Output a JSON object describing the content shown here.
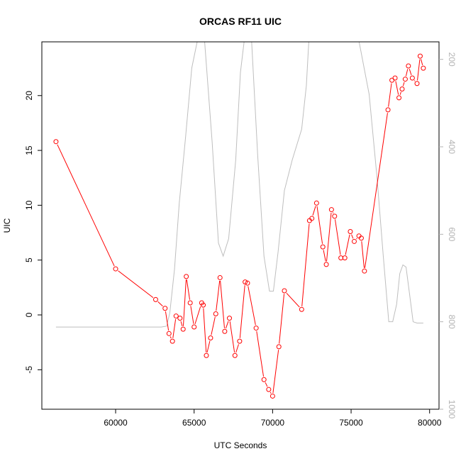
{
  "chart_data": {
    "type": "line",
    "title": "ORCAS RF11 UIC",
    "xlabel": "UTC Seconds",
    "ylabel": "UIC",
    "xlim": [
      55300,
      80600
    ],
    "ylim": [
      -8.6,
      24.9
    ],
    "right_ylim": [
      1000,
      160
    ],
    "right_reversed": true,
    "xticks": [
      60000,
      65000,
      70000,
      75000,
      80000
    ],
    "xtick_labels": [
      "60000",
      "65000",
      "70000",
      "75000",
      "80000"
    ],
    "yticks": [
      -5,
      0,
      5,
      10,
      15,
      20
    ],
    "ytick_labels": [
      "-5",
      "0",
      "5",
      "10",
      "15",
      "20"
    ],
    "right_yticks": [
      200,
      400,
      600,
      800,
      1000
    ],
    "right_ytick_labels": [
      "200",
      "400",
      "600",
      "800",
      "1000"
    ],
    "colors": {
      "uic": "#ff0000",
      "pressure": "#bebebe"
    },
    "series": [
      {
        "name": "",
        "axis": "left",
        "color": "#ff0000",
        "marker": "open-circle",
        "x": [
          56200,
          60000,
          62550,
          63150,
          63400,
          63620,
          63850,
          64100,
          64300,
          64500,
          64750,
          65000,
          65480,
          65580,
          65780,
          66050,
          66380,
          66650,
          66950,
          67250,
          67600,
          67900,
          68250,
          68400,
          68950,
          69450,
          69750,
          70000,
          70400,
          70750,
          71850,
          72350,
          72500,
          72800,
          73200,
          73420,
          73750,
          73950,
          74350,
          74600,
          74950,
          75200,
          75500,
          75650,
          75850,
          77350,
          77600,
          77800,
          78050,
          78250,
          78450,
          78650,
          78900,
          79200,
          79400,
          79600
        ],
        "y": [
          15.8,
          4.2,
          1.4,
          0.6,
          -1.7,
          -2.4,
          -0.1,
          -0.3,
          -1.3,
          3.5,
          1.1,
          -1.1,
          1.1,
          0.9,
          -3.7,
          -2.1,
          0.1,
          3.4,
          -1.5,
          -0.3,
          -3.7,
          -2.4,
          3.0,
          2.9,
          -1.2,
          -5.9,
          -6.8,
          -7.4,
          -2.9,
          2.2,
          0.5,
          8.6,
          8.8,
          10.2,
          6.2,
          4.6,
          9.6,
          9.0,
          5.2,
          5.2,
          7.6,
          6.7,
          7.2,
          7.0,
          4.0,
          18.7,
          21.4,
          21.6,
          19.8,
          20.6,
          21.5,
          22.7,
          21.6,
          21.1,
          23.6,
          22.5
        ]
      },
      {
        "name": "",
        "axis": "right",
        "color": "#bebebe",
        "x": [
          56200,
          62900,
          63250,
          63450,
          63750,
          64050,
          64450,
          64850,
          65250,
          65650,
          66150,
          66550,
          66850,
          67200,
          67650,
          67950,
          68250,
          68650,
          69050,
          69450,
          69800,
          70050,
          70350,
          70750,
          71250,
          71850,
          72150,
          72350,
          73150,
          73250,
          73550,
          74250,
          74550,
          75350,
          76150,
          76650,
          77050,
          77400,
          77650,
          77900,
          78100,
          78300,
          78500,
          78700,
          78950,
          79200,
          79600
        ],
        "y": [
          812,
          812,
          810,
          780,
          680,
          530,
          380,
          220,
          150,
          150,
          390,
          620,
          650,
          610,
          430,
          230,
          140,
          150,
          420,
          650,
          730,
          730,
          640,
          500,
          430,
          360,
          260,
          130,
          130,
          145,
          145,
          130,
          145,
          130,
          280,
          470,
          650,
          800,
          800,
          760,
          690,
          670,
          675,
          730,
          800,
          803,
          803
        ]
      }
    ]
  }
}
